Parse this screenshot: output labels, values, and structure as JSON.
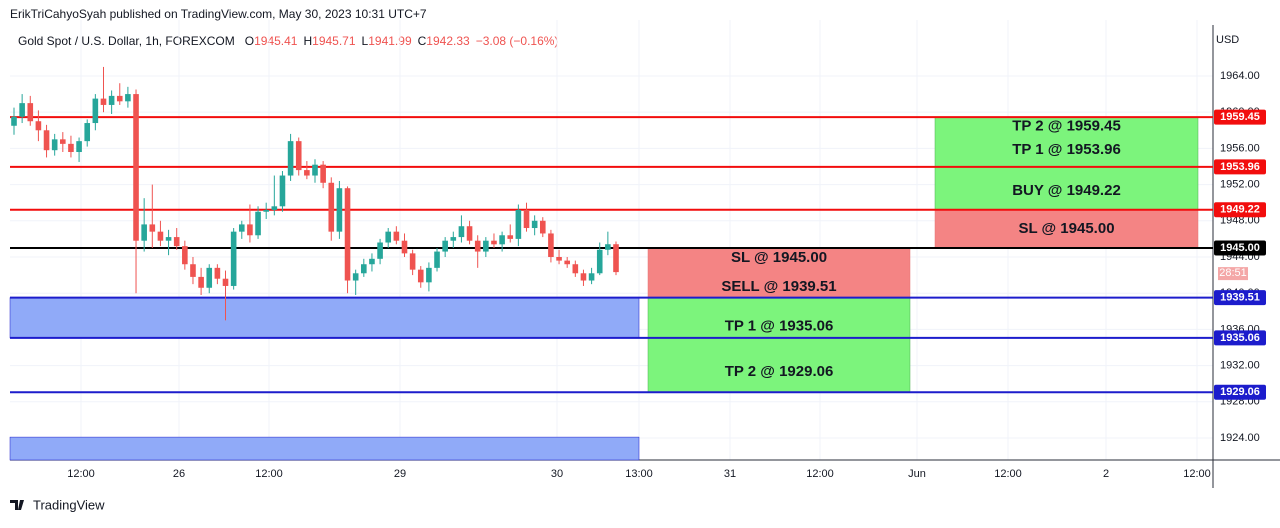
{
  "header": {
    "published": "ErikTriCahyoSyah published on TradingView.com, May 30, 2023 10:31 UTC+7",
    "symbol": "Gold Spot / U.S. Dollar, 1h, FOREXCOM",
    "ohlc": [
      {
        "label": "O",
        "value": 1945.41
      },
      {
        "label": "H",
        "value": 1945.71
      },
      {
        "label": "L",
        "value": 1941.99
      },
      {
        "label": "C",
        "value": 1942.33
      }
    ],
    "change": "−3.08 (−0.16%)"
  },
  "footer": "TradingView",
  "chart_data": {
    "type": "candlestick",
    "currency": "USD",
    "up_color": "#26a69a",
    "down_color": "#ef5350",
    "grid": true,
    "ylim": [
      1921.57,
      1969.08
    ],
    "yticks": [
      {
        "value": 1924,
        "label": "1924.00"
      },
      {
        "value": 1928,
        "label": "1928.00"
      },
      {
        "value": 1932,
        "label": "1932.00"
      },
      {
        "value": 1936,
        "label": "1936.00"
      },
      {
        "value": 1940,
        "label": "1940.00"
      },
      {
        "value": 1944,
        "label": "1944.00"
      },
      {
        "value": 1948,
        "label": "1948.00"
      },
      {
        "value": 1952,
        "label": "1952.00"
      },
      {
        "value": 1956,
        "label": "1956.00"
      },
      {
        "value": 1960,
        "label": "1960.00"
      },
      {
        "value": 1964,
        "label": "1964.00"
      }
    ],
    "xticks": [
      "12:00",
      "26",
      "12:00",
      "29",
      "30",
      "13:00",
      "31",
      "12:00",
      "Jun",
      "12:00",
      "2",
      "12:00"
    ],
    "candles": [
      [
        1958.5,
        1960.5,
        1957.5,
        1959.5
      ],
      [
        1959.5,
        1962.0,
        1958.8,
        1961.0
      ],
      [
        1961.0,
        1961.8,
        1958.5,
        1959.0
      ],
      [
        1959.0,
        1960.2,
        1956.8,
        1958.0
      ],
      [
        1958.0,
        1958.6,
        1955.0,
        1955.8
      ],
      [
        1955.8,
        1957.6,
        1955.2,
        1957.0
      ],
      [
        1957.0,
        1957.8,
        1955.6,
        1956.5
      ],
      [
        1956.5,
        1957.4,
        1955.0,
        1955.6
      ],
      [
        1955.6,
        1957.2,
        1954.5,
        1956.8
      ],
      [
        1956.8,
        1959.2,
        1956.2,
        1958.8
      ],
      [
        1958.8,
        1962.0,
        1958.0,
        1961.5
      ],
      [
        1961.5,
        1965.0,
        1960.0,
        1960.8
      ],
      [
        1960.8,
        1962.4,
        1959.8,
        1961.8
      ],
      [
        1961.8,
        1963.2,
        1960.8,
        1961.2
      ],
      [
        1961.2,
        1962.8,
        1960.5,
        1962.0
      ],
      [
        1962.0,
        1962.5,
        1940.0,
        1945.8
      ],
      [
        1945.8,
        1950.5,
        1944.6,
        1947.6
      ],
      [
        1947.6,
        1952.0,
        1945.0,
        1946.8
      ],
      [
        1946.8,
        1948.0,
        1945.2,
        1945.8
      ],
      [
        1945.8,
        1947.0,
        1944.2,
        1946.2
      ],
      [
        1946.2,
        1947.2,
        1944.8,
        1945.2
      ],
      [
        1945.2,
        1945.8,
        1942.6,
        1943.2
      ],
      [
        1943.2,
        1944.0,
        1941.0,
        1941.8
      ],
      [
        1941.8,
        1942.8,
        1939.8,
        1940.6
      ],
      [
        1940.6,
        1943.2,
        1940.0,
        1942.8
      ],
      [
        1942.8,
        1943.2,
        1941.0,
        1941.6
      ],
      [
        1941.6,
        1942.5,
        1937.0,
        1940.8
      ],
      [
        1940.8,
        1947.2,
        1940.4,
        1946.8
      ],
      [
        1946.8,
        1948.0,
        1946.0,
        1947.6
      ],
      [
        1947.6,
        1949.8,
        1945.6,
        1946.4
      ],
      [
        1946.4,
        1949.6,
        1946.0,
        1949.0
      ],
      [
        1949.0,
        1950.0,
        1948.2,
        1949.2
      ],
      [
        1949.2,
        1953.0,
        1948.6,
        1949.6
      ],
      [
        1949.6,
        1953.5,
        1949.0,
        1953.0
      ],
      [
        1953.0,
        1957.6,
        1952.4,
        1956.8
      ],
      [
        1956.8,
        1957.2,
        1953.0,
        1953.6
      ],
      [
        1953.6,
        1954.6,
        1952.6,
        1953.0
      ],
      [
        1953.0,
        1954.8,
        1952.2,
        1954.2
      ],
      [
        1954.2,
        1954.6,
        1951.6,
        1952.2
      ],
      [
        1952.2,
        1952.8,
        1945.8,
        1946.8
      ],
      [
        1946.8,
        1952.4,
        1946.0,
        1951.6
      ],
      [
        1951.6,
        1951.8,
        1940.0,
        1941.4
      ],
      [
        1941.4,
        1942.6,
        1939.8,
        1942.2
      ],
      [
        1942.2,
        1943.8,
        1941.8,
        1943.2
      ],
      [
        1943.2,
        1944.4,
        1942.4,
        1943.8
      ],
      [
        1943.8,
        1946.0,
        1943.2,
        1945.6
      ],
      [
        1945.6,
        1947.2,
        1945.0,
        1946.8
      ],
      [
        1946.8,
        1947.4,
        1945.4,
        1945.8
      ],
      [
        1945.8,
        1946.6,
        1944.0,
        1944.4
      ],
      [
        1944.4,
        1944.8,
        1942.0,
        1942.6
      ],
      [
        1942.6,
        1943.0,
        1940.6,
        1941.2
      ],
      [
        1941.2,
        1943.4,
        1940.2,
        1942.8
      ],
      [
        1942.8,
        1945.0,
        1942.4,
        1944.6
      ],
      [
        1944.6,
        1946.2,
        1944.0,
        1945.8
      ],
      [
        1945.8,
        1946.8,
        1945.0,
        1946.2
      ],
      [
        1946.2,
        1948.6,
        1945.6,
        1947.4
      ],
      [
        1947.4,
        1948.0,
        1945.4,
        1945.8
      ],
      [
        1945.8,
        1946.4,
        1942.8,
        1944.6
      ],
      [
        1944.6,
        1946.2,
        1944.0,
        1945.8
      ],
      [
        1945.8,
        1946.6,
        1945.0,
        1945.4
      ],
      [
        1945.4,
        1946.8,
        1944.6,
        1946.4
      ],
      [
        1946.4,
        1947.6,
        1945.6,
        1946.0
      ],
      [
        1946.0,
        1949.8,
        1945.2,
        1949.2
      ],
      [
        1949.2,
        1950.0,
        1946.8,
        1947.2
      ],
      [
        1947.2,
        1948.6,
        1946.4,
        1948.0
      ],
      [
        1948.0,
        1948.4,
        1946.2,
        1946.6
      ],
      [
        1946.6,
        1947.0,
        1943.4,
        1944.0
      ],
      [
        1944.0,
        1944.8,
        1943.2,
        1943.6
      ],
      [
        1943.6,
        1944.0,
        1942.8,
        1943.2
      ],
      [
        1943.2,
        1943.6,
        1941.8,
        1942.2
      ],
      [
        1942.2,
        1942.6,
        1940.8,
        1941.4
      ],
      [
        1941.4,
        1942.8,
        1941.0,
        1942.2
      ],
      [
        1942.2,
        1945.6,
        1942.0,
        1944.8
      ],
      [
        1944.8,
        1946.8,
        1944.2,
        1945.41
      ],
      [
        1945.41,
        1945.71,
        1941.99,
        1942.33
      ]
    ],
    "zones": [
      {
        "range": [
          1935.06,
          1939.51
        ],
        "color": "#90aaf8"
      },
      {
        "range": [
          1921.57,
          1924.1
        ],
        "color": "#90aaf8"
      }
    ],
    "levels": [
      {
        "value": 1959.45,
        "label": "1959.45",
        "color": "#f20d0d"
      },
      {
        "value": 1953.96,
        "label": "1953.96",
        "color": "#f20d0d"
      },
      {
        "value": 1949.22,
        "label": "1949.22",
        "color": "#f20d0d"
      },
      {
        "value": 1945.0,
        "label": "1945.00",
        "color": "#000000"
      },
      {
        "value": 1939.51,
        "label": "1939.51",
        "color": "#1c1ccc"
      },
      {
        "value": 1935.06,
        "label": "1935.06",
        "color": "#1c1ccc"
      },
      {
        "value": 1929.06,
        "label": "1929.06",
        "color": "#1c1ccc"
      }
    ],
    "timer": "28:51",
    "positions": [
      {
        "profit": [
          1949.22,
          1959.45
        ],
        "loss": [
          1945.0,
          1949.22
        ],
        "profit_labels": [
          {
            "text": "TP 2 @ 1959.45",
            "value": 1958.4
          },
          {
            "text": "TP 1 @ 1953.96",
            "value": 1955.8
          },
          {
            "text": "BUY @ 1949.22",
            "value": 1951.3
          }
        ],
        "loss_labels": [
          {
            "text": "SL @ 1945.00",
            "value": 1947.1
          }
        ]
      },
      {
        "profit": [
          1929.06,
          1939.51
        ],
        "loss": [
          1939.51,
          1945.0
        ],
        "loss_labels": [
          {
            "text": "SL @ 1945.00",
            "value": 1943.9
          },
          {
            "text": "SELL @ 1939.51",
            "value": 1940.7
          }
        ],
        "profit_labels": [
          {
            "text": "TP 1 @ 1935.06",
            "value": 1936.3
          },
          {
            "text": "TP 2 @ 1929.06",
            "value": 1931.3
          }
        ]
      }
    ]
  }
}
